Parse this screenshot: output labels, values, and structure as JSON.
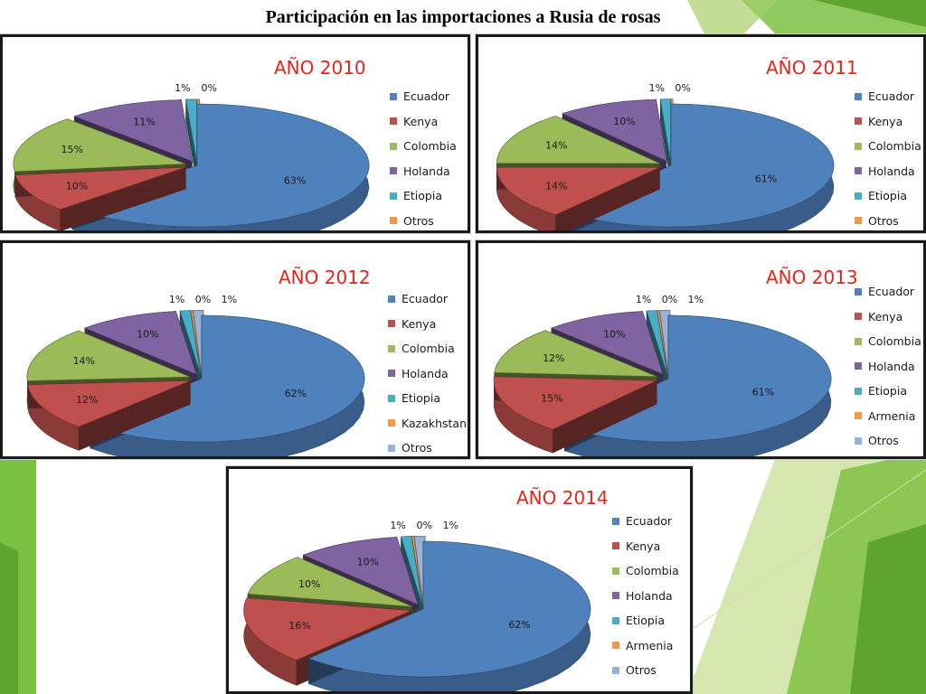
{
  "slide": {
    "title": "Participación en las importaciones a Rusia de rosas"
  },
  "colors": {
    "Ecuador": "#4f81bd",
    "Kenya": "#c0504d",
    "Colombia": "#9bbb59",
    "Holanda": "#8064a2",
    "Etiopia": "#4bacc6",
    "Kazakhstan": "#f79646",
    "Armenia": "#f79646",
    "Otros": "#f79646",
    "Otros_light": "#95b3d7",
    "accent_title": "#e8231a",
    "bg_green": "#7ac142",
    "bg_green_light": "#c3dd8d"
  },
  "chart_data": [
    {
      "type": "pie",
      "title": "AÑO 2010",
      "categories": [
        "Ecuador",
        "Kenya",
        "Colombia",
        "Holanda",
        "Etiopia",
        "Otros"
      ],
      "values": [
        63,
        10,
        15,
        11,
        1,
        0
      ],
      "labels": [
        "63%",
        "10%",
        "15%",
        "11%",
        "1%",
        "0%"
      ],
      "legend": "right"
    },
    {
      "type": "pie",
      "title": "AÑO 2011",
      "categories": [
        "Ecuador",
        "Kenya",
        "Colombia",
        "Holanda",
        "Etiopia",
        "Otros"
      ],
      "values": [
        61,
        14,
        14,
        10,
        1,
        0
      ],
      "labels": [
        "61%",
        "14%",
        "14%",
        "10%",
        "1%",
        "0%"
      ],
      "legend": "right"
    },
    {
      "type": "pie",
      "title": "AÑO 2012",
      "categories": [
        "Ecuador",
        "Kenya",
        "Colombia",
        "Holanda",
        "Etiopia",
        "Kazakhstan",
        "Otros"
      ],
      "values": [
        62,
        12,
        14,
        10,
        1,
        0,
        1
      ],
      "labels": [
        "62%",
        "12%",
        "14%",
        "10%",
        "1%",
        "0%",
        "1%"
      ],
      "legend": "right"
    },
    {
      "type": "pie",
      "title": "AÑO 2013",
      "categories": [
        "Ecuador",
        "Kenya",
        "Colombia",
        "Holanda",
        "Etiopia",
        "Armenia",
        "Otros"
      ],
      "values": [
        61,
        15,
        12,
        10,
        1,
        0,
        1
      ],
      "labels": [
        "61%",
        "15%",
        "12%",
        "10%",
        "1%",
        "0%",
        "1%"
      ],
      "legend": "right"
    },
    {
      "type": "pie",
      "title": "AÑO 2014",
      "categories": [
        "Ecuador",
        "Kenya",
        "Colombia",
        "Holanda",
        "Etiopia",
        "Armenia",
        "Otros"
      ],
      "values": [
        62,
        16,
        10,
        10,
        1,
        0,
        1
      ],
      "labels": [
        "62%",
        "16%",
        "10%",
        "10%",
        "1%",
        "0%",
        "1%"
      ],
      "legend": "right"
    }
  ]
}
